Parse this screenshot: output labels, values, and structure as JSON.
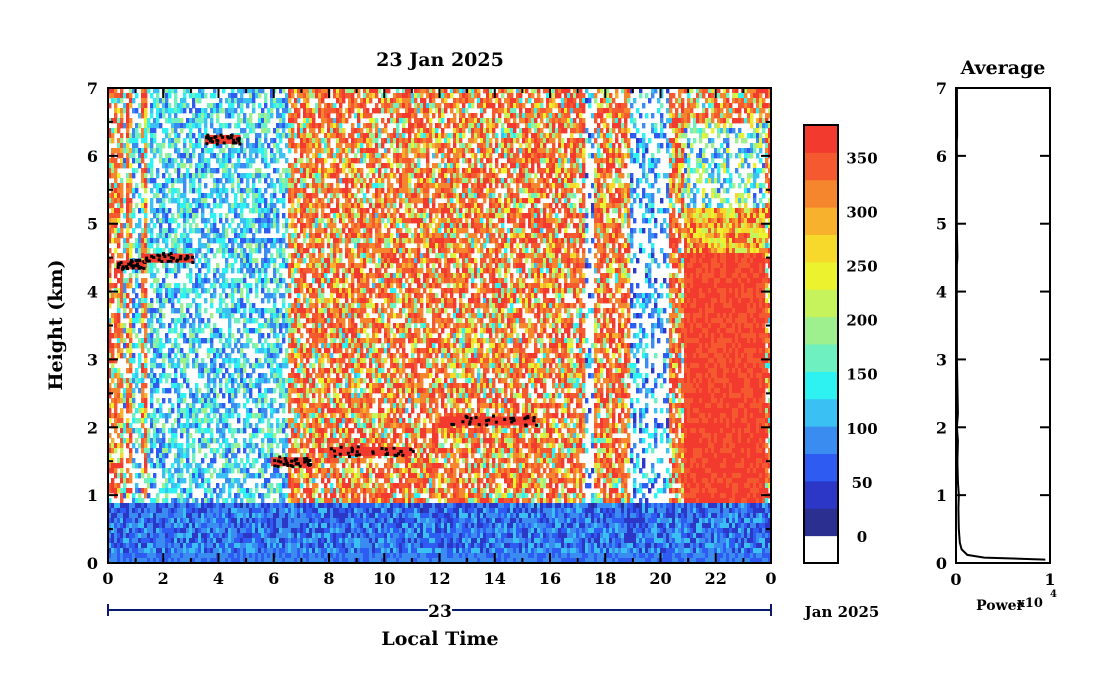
{
  "chart_data": [
    {
      "type": "heatmap",
      "title": "23 Jan 2025",
      "xlabel": "Local Time",
      "ylabel": "Height (km)",
      "x_ticks": [
        "0",
        "2",
        "4",
        "6",
        "8",
        "10",
        "12",
        "14",
        "16",
        "18",
        "20",
        "22",
        "0"
      ],
      "y_ticks": [
        "0",
        "1",
        "2",
        "3",
        "4",
        "5",
        "6",
        "7"
      ],
      "xlim": [
        0,
        24
      ],
      "ylim": [
        0,
        7
      ],
      "date_axis": {
        "day_label": "23",
        "month_label": "Jan 2025"
      },
      "colorbar": {
        "ticks": [
          "0",
          "50",
          "100",
          "150",
          "200",
          "250",
          "300",
          "350"
        ],
        "range": [
          -25,
          380
        ],
        "colors": [
          "#ffffff",
          "#2b2f8f",
          "#2c37c8",
          "#2e5bf2",
          "#3a8cf0",
          "#3bc0f3",
          "#2ef2f2",
          "#6ff0c0",
          "#9ef08e",
          "#c6f25c",
          "#ecf22e",
          "#f7d92b",
          "#f7b12c",
          "#f5862e",
          "#f4592f",
          "#f23a2f"
        ]
      },
      "features": {
        "clouds_km": [
          {
            "start_h": 0.3,
            "end_h": 1.3,
            "height": 4.4
          },
          {
            "start_h": 1.3,
            "end_h": 3.1,
            "height": 4.5
          },
          {
            "start_h": 3.5,
            "end_h": 4.8,
            "height": 6.25
          },
          {
            "start_h": 5.9,
            "end_h": 7.3,
            "height": 1.5
          },
          {
            "start_h": 8.0,
            "end_h": 11.0,
            "height": 1.65
          },
          {
            "start_h": 12.0,
            "end_h": 15.5,
            "height": 2.1
          }
        ],
        "precipitation_hours": [
          [
            0.0,
            0.5
          ],
          [
            0.6,
            0.9
          ],
          [
            1.2,
            1.4
          ],
          [
            6.5,
            24.0
          ]
        ]
      }
    },
    {
      "type": "line",
      "title": "Average",
      "xlabel": "Power",
      "x_exponent_label": "x10",
      "x_exponent": "4",
      "x_ticks": [
        "0",
        "1"
      ],
      "y_ticks": [
        "0",
        "1",
        "2",
        "3",
        "4",
        "5",
        "6",
        "7"
      ],
      "xlim": [
        0,
        1
      ],
      "ylim": [
        0,
        7
      ],
      "x": [
        0.95,
        0.3,
        0.12,
        0.06,
        0.04,
        0.03,
        0.025,
        0.03,
        0.02,
        0.015,
        0.02,
        0.01,
        0.02,
        0.01,
        0.008,
        0.01,
        0.015,
        0.008,
        0.01,
        0.008,
        0.012,
        0.01
      ],
      "y": [
        0.05,
        0.08,
        0.12,
        0.2,
        0.3,
        0.5,
        0.8,
        1.0,
        1.2,
        1.5,
        1.8,
        2.0,
        2.2,
        3.0,
        4.0,
        4.4,
        4.5,
        5.0,
        6.0,
        6.2,
        6.3,
        7.0
      ]
    }
  ]
}
